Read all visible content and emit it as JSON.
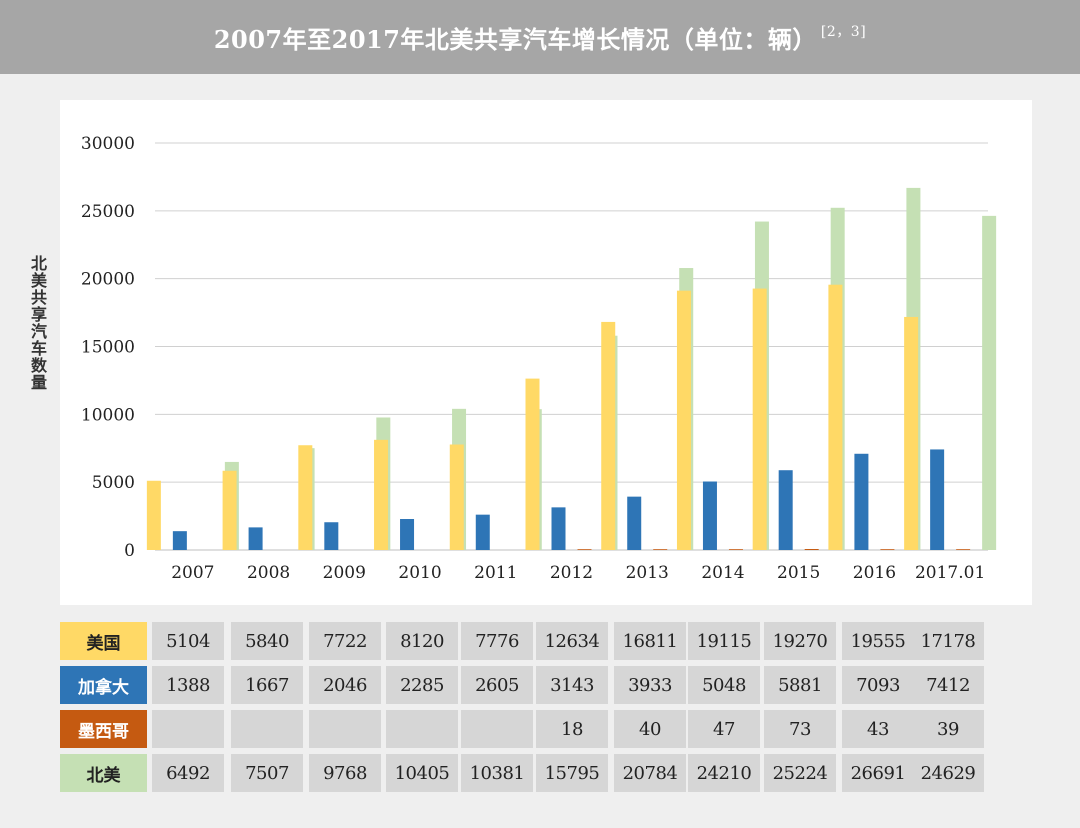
{
  "header": {
    "title": "2007年至2017年北美共享汽车增长情况（单位：辆）",
    "ref": "[2，3]"
  },
  "chart_data": {
    "type": "bar",
    "title": "2007年至2017年北美共享汽车增长情况（单位：辆）",
    "ylabel": "北美共享汽车数量",
    "xlabel": "",
    "ylim": [
      0,
      30000
    ],
    "yticks": [
      "0",
      "5000",
      "10000",
      "15000",
      "20000",
      "25000",
      "30000"
    ],
    "grid": true,
    "categories": [
      "2007",
      "2008",
      "2009",
      "2010",
      "2011",
      "2012",
      "2013",
      "2014",
      "2015",
      "2016",
      "2017.01"
    ],
    "series": [
      {
        "name": "美国",
        "color": "#ffd966",
        "values": [
          5104,
          5840,
          7722,
          8120,
          7776,
          12634,
          16811,
          19115,
          19270,
          19555,
          17178
        ]
      },
      {
        "name": "加拿大",
        "color": "#2e75b6",
        "values": [
          1388,
          1667,
          2046,
          2285,
          2605,
          3143,
          3933,
          5048,
          5881,
          7093,
          7412
        ]
      },
      {
        "name": "墨西哥",
        "color": "#c55a11",
        "values": [
          null,
          null,
          null,
          null,
          null,
          18,
          40,
          47,
          73,
          43,
          39
        ]
      },
      {
        "name": "北美",
        "color": "#c5e0b4",
        "values": [
          6492,
          7507,
          9768,
          10405,
          10381,
          15795,
          20784,
          24210,
          25224,
          26691,
          24629
        ]
      }
    ]
  },
  "table": {
    "rows": [
      {
        "label": "美国",
        "bg": "#ffd966",
        "fg": "#222222",
        "cells": [
          "5104",
          "5840",
          "7722",
          "8120",
          "7776",
          "12634",
          "16811",
          "19115",
          "19270",
          "19555",
          "17178"
        ]
      },
      {
        "label": "加拿大",
        "bg": "#2e75b6",
        "fg": "#ffffff",
        "cells": [
          "1388",
          "1667",
          "2046",
          "2285",
          "2605",
          "3143",
          "3933",
          "5048",
          "5881",
          "7093",
          "7412"
        ]
      },
      {
        "label": "墨西哥",
        "bg": "#c55a11",
        "fg": "#ffffff",
        "cells": [
          "",
          "",
          "",
          "",
          "",
          "18",
          "40",
          "47",
          "73",
          "43",
          "39"
        ]
      },
      {
        "label": "北美",
        "bg": "#c5e0b4",
        "fg": "#222222",
        "cells": [
          "6492",
          "7507",
          "9768",
          "10405",
          "10381",
          "15795",
          "20784",
          "24210",
          "25224",
          "26691",
          "24629"
        ]
      }
    ]
  }
}
